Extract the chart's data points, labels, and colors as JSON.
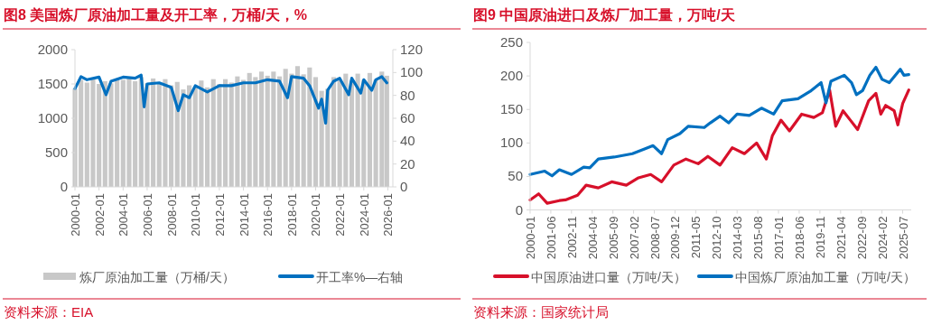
{
  "chart_data": [
    {
      "type": "bar",
      "title": "图8  美国炼厂原油加工量及开工率，万桶/天，%",
      "xlim": [
        "2000-01",
        "2026-06"
      ],
      "xticks": [
        "2000-01",
        "2002-01",
        "2004-01",
        "2006-01",
        "2008-01",
        "2010-01",
        "2012-01",
        "2014-01",
        "2016-01",
        "2018-01",
        "2020-01",
        "2022-01",
        "2024-01",
        "2026-01"
      ],
      "ylim": [
        0,
        2000
      ],
      "yticks": [
        0,
        500,
        1000,
        1500,
        2000
      ],
      "y2lim": [
        0,
        120
      ],
      "y2ticks": [
        0,
        20,
        40,
        60,
        80,
        100,
        120
      ],
      "legend": "bottom",
      "annotations": [
        "资料来源：EIA"
      ],
      "series": [
        {
          "name": "炼厂原油加工量（万桶/天）",
          "color": "#c8c8c8",
          "x": [
            "2000-01",
            "2000-07",
            "2001-01",
            "2001-07",
            "2002-01",
            "2002-07",
            "2003-01",
            "2003-07",
            "2004-01",
            "2004-07",
            "2005-01",
            "2005-07",
            "2006-01",
            "2006-07",
            "2007-01",
            "2007-07",
            "2008-01",
            "2008-07",
            "2009-01",
            "2009-07",
            "2010-01",
            "2010-07",
            "2011-01",
            "2011-07",
            "2012-01",
            "2012-07",
            "2013-01",
            "2013-07",
            "2014-01",
            "2014-07",
            "2015-01",
            "2015-07",
            "2016-01",
            "2016-07",
            "2017-01",
            "2017-07",
            "2018-01",
            "2018-07",
            "2019-01",
            "2019-07",
            "2020-01",
            "2020-07",
            "2021-01",
            "2021-07",
            "2022-01",
            "2022-07",
            "2023-01",
            "2023-07",
            "2024-01",
            "2024-07",
            "2025-01",
            "2025-07",
            "2025-12"
          ],
          "values": [
            1430,
            1560,
            1520,
            1570,
            1500,
            1540,
            1510,
            1580,
            1560,
            1600,
            1540,
            1600,
            1510,
            1580,
            1510,
            1570,
            1480,
            1530,
            1420,
            1480,
            1450,
            1550,
            1450,
            1570,
            1500,
            1570,
            1520,
            1610,
            1560,
            1660,
            1600,
            1680,
            1620,
            1680,
            1610,
            1720,
            1650,
            1760,
            1640,
            1740,
            1600,
            1400,
            1430,
            1600,
            1560,
            1650,
            1550,
            1650,
            1560,
            1660,
            1560,
            1680,
            1620
          ]
        },
        {
          "name": "开工率%—右轴",
          "type": "line",
          "axis": "y2",
          "color": "#0070c0",
          "x": [
            "2000-01",
            "2000-07",
            "2001-01",
            "2002-01",
            "2002-08",
            "2003-01",
            "2004-01",
            "2005-01",
            "2005-07",
            "2005-10",
            "2006-01",
            "2007-01",
            "2008-01",
            "2008-08",
            "2009-01",
            "2009-07",
            "2010-01",
            "2011-01",
            "2012-01",
            "2013-01",
            "2014-01",
            "2015-01",
            "2016-01",
            "2017-01",
            "2017-09",
            "2018-01",
            "2019-01",
            "2019-07",
            "2020-04",
            "2020-07",
            "2020-11",
            "2021-01",
            "2021-07",
            "2022-01",
            "2022-10",
            "2023-01",
            "2023-10",
            "2024-01",
            "2024-09",
            "2025-01",
            "2025-07",
            "2025-12"
          ],
          "values": [
            85.9,
            96.4,
            93.7,
            96,
            80.6,
            92.4,
            96,
            95,
            97.7,
            70,
            90,
            91,
            87,
            66.7,
            80.6,
            78,
            88.5,
            83,
            88.5,
            88.5,
            91,
            91,
            93.7,
            92.4,
            78,
            96.4,
            95,
            88.5,
            68.8,
            76.7,
            55.7,
            84.5,
            92.4,
            95,
            80.6,
            95,
            82,
            93.7,
            84.5,
            93.7,
            96.4,
            91
          ]
        }
      ]
    },
    {
      "type": "line",
      "title": "图9  中国原油进口及炼厂加工量，万吨/天",
      "xlim": [
        "2000-01",
        "2026-02"
      ],
      "xticks": [
        "2000-01",
        "2001-06",
        "2002-11",
        "2004-04",
        "2005-09",
        "2007-02",
        "2008-07",
        "2009-12",
        "2011-05",
        "2012-10",
        "2014-03",
        "2015-08",
        "2017-01",
        "2018-06",
        "2019-11",
        "2021-04",
        "2022-09",
        "2024-02",
        "2025-07"
      ],
      "ylim": [
        0,
        250
      ],
      "yticks": [
        0,
        50,
        100,
        150,
        200,
        250
      ],
      "legend": "bottom",
      "annotations": [
        "资料来源：国家统计局"
      ],
      "series": [
        {
          "name": "中国原油进口量（万吨/天）",
          "color": "#d7102a",
          "x": [
            "2000-01",
            "2000-08",
            "2001-03",
            "2002-01",
            "2002-06",
            "2003-04",
            "2003-11",
            "2004-09",
            "2005-08",
            "2006-08",
            "2007-06",
            "2008-04",
            "2009-01",
            "2009-11",
            "2010-09",
            "2011-07",
            "2012-03",
            "2013-01",
            "2013-11",
            "2014-09",
            "2015-07",
            "2016-03",
            "2016-08",
            "2017-03",
            "2017-10",
            "2018-08",
            "2019-06",
            "2020-01",
            "2020-07",
            "2020-12",
            "2021-06",
            "2021-12",
            "2022-06",
            "2023-03",
            "2023-09",
            "2024-01",
            "2024-05",
            "2024-12",
            "2025-03",
            "2025-07",
            "2025-12"
          ],
          "values": [
            15,
            24,
            10,
            14,
            15,
            22,
            37,
            33,
            42,
            37,
            48,
            53,
            42,
            67,
            76,
            69,
            80,
            67,
            93,
            84,
            100,
            76,
            111,
            134,
            118,
            143,
            138,
            145,
            179,
            125,
            148,
            134,
            120,
            163,
            174,
            143,
            156,
            148,
            127,
            159,
            179
          ]
        },
        {
          "name": "中国炼厂原油加工量（万吨/天）",
          "color": "#0070c0",
          "x": [
            "2000-01",
            "2001-01",
            "2001-07",
            "2002-01",
            "2002-11",
            "2003-09",
            "2004-02",
            "2004-09",
            "2005-10",
            "2007-01",
            "2007-11",
            "2008-06",
            "2009-01",
            "2009-06",
            "2010-04",
            "2010-11",
            "2011-12",
            "2012-05",
            "2013-01",
            "2013-08",
            "2014-03",
            "2015-01",
            "2015-11",
            "2016-09",
            "2017-04",
            "2018-05",
            "2019-03",
            "2019-12",
            "2020-04",
            "2020-08",
            "2021-07",
            "2022-01",
            "2022-05",
            "2022-10",
            "2023-04",
            "2023-09",
            "2024-02",
            "2024-08",
            "2025-05",
            "2025-08",
            "2025-12"
          ],
          "values": [
            53,
            58,
            51,
            60,
            53,
            64,
            63,
            76,
            79,
            84,
            91,
            96,
            84,
            105,
            114,
            125,
            123,
            130,
            140,
            130,
            143,
            141,
            152,
            143,
            163,
            166,
            177,
            190,
            160,
            192,
            201,
            190,
            172,
            178,
            201,
            213,
            195,
            190,
            210,
            201,
            202
          ]
        }
      ]
    }
  ]
}
